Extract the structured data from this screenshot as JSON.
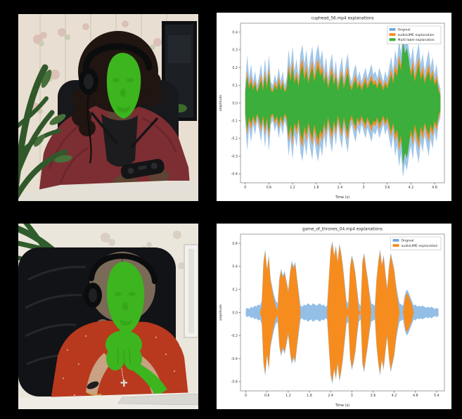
{
  "figure": {
    "background_color": "#000000",
    "photos": [
      {
        "name": "video-frame-top",
        "description": "person with dark curly hair wearing black headphones, bright green segmentation mask over face, maroon jacket, holding a game controller at a white table, floral wallpaper, plant left, dark poster right",
        "mask_color": "#3cb51e"
      },
      {
        "name": "video-frame-bottom",
        "description": "older woman with long braid wearing black headphones, bright green segmentation mask over face and clasped hands, red patterned blouse, black leather chair, white table with laptop edge",
        "mask_color": "#3cb51e"
      }
    ]
  },
  "palette": {
    "mask": "#3cb51e",
    "mask-dk": "#2f9a14",
    "p1-wall": "#e8dfd2",
    "p1-flower1": "#d9b9ae",
    "p1-flower2": "#c2c9ad",
    "p1-plant": "#31582b",
    "p1-plant2": "#47703b",
    "p1-poster": "#1c2024",
    "p1-poster-frame": "#0e1013",
    "p1-chair": "#17181b",
    "p1-hair": "#201510",
    "p1-jacket": "#7c2e33",
    "p1-jacket-dk": "#5d2026",
    "p1-shirt": "#1c1c1e",
    "p1-skin": "#5f4333",
    "p1-controller": "#141416",
    "p1-table": "#e4e0d7",
    "p2-wall": "#eae6dc",
    "p2-flower": "#d5cabd",
    "p2-plant": "#2f5d2b",
    "p2-chair": "#121317",
    "p2-chair-hi": "#2e3036",
    "p2-hair": "#7a6a57",
    "p2-blouse": "#b8391d",
    "p2-skin": "#c9a183",
    "p2-watch": "#1d1d1f",
    "p2-gold": "#c9a23c",
    "p2-table": "#efece6",
    "p2-laptop": "#d9d7d2",
    "p2-frame": "#f2f1ee",
    "headphones": "#0b0c0d"
  },
  "chart_data": [
    {
      "type": "area",
      "title": "cuphead_56.mp4 explanations",
      "xlabel": "Time (s)",
      "ylabel": "amplitude",
      "xlim": [
        -0.12,
        5.05
      ],
      "ylim": [
        -0.45,
        0.45
      ],
      "xticks": [
        0,
        0.6,
        1.2,
        1.8,
        2.4,
        3,
        3.6,
        4.2,
        4.8
      ],
      "xtick_labels": [
        "0",
        "0.6",
        "1.2",
        "1.8",
        "2.4",
        "3",
        "3.6",
        "4.2",
        "4.8"
      ],
      "yticks": [
        0.4,
        0.3,
        0.2,
        0.1,
        0.0,
        -0.1,
        -0.2,
        -0.3,
        -0.4
      ],
      "ytick_labels": [
        "0.4",
        "0.3",
        "0.2",
        "0.1",
        "0.0",
        "-0.1",
        "-0.2",
        "-0.3",
        "-0.4"
      ],
      "legend_position": "upper right",
      "grid": false,
      "t0": 0,
      "dt": 0.05,
      "series": [
        {
          "name": "Original",
          "color": "#6fa8dc",
          "opacity": 0.65,
          "envelope": [
            0.1,
            0.27,
            0.14,
            0.22,
            0.12,
            0.18,
            0.1,
            0.15,
            0.22,
            0.12,
            0.25,
            0.14,
            0.27,
            0.12,
            0.1,
            0.16,
            0.12,
            0.2,
            0.12,
            0.18,
            0.1,
            0.14,
            0.3,
            0.2,
            0.32,
            0.18,
            0.25,
            0.15,
            0.28,
            0.33,
            0.22,
            0.3,
            0.18,
            0.26,
            0.32,
            0.2,
            0.28,
            0.33,
            0.24,
            0.3,
            0.18,
            0.26,
            0.14,
            0.22,
            0.28,
            0.16,
            0.24,
            0.12,
            0.2,
            0.26,
            0.14,
            0.22,
            0.28,
            0.16,
            0.12,
            0.18,
            0.22,
            0.14,
            0.18,
            0.12,
            0.16,
            0.2,
            0.14,
            0.18,
            0.22,
            0.16,
            0.18,
            0.14,
            0.2,
            0.16,
            0.12,
            0.18,
            0.14,
            0.2,
            0.26,
            0.18,
            0.3,
            0.24,
            0.36,
            0.28,
            0.42,
            0.34,
            0.38,
            0.3,
            0.24,
            0.32,
            0.2,
            0.28,
            0.34,
            0.22,
            0.28,
            0.18,
            0.24,
            0.3,
            0.2,
            0.26,
            0.16,
            0.22,
            0.12,
            0.08
          ]
        },
        {
          "name": "audioLIME explanation",
          "color": "#f68c1e",
          "opacity": 0.95,
          "envelope": [
            0.07,
            0.18,
            0.1,
            0.15,
            0.09,
            0.13,
            0.07,
            0.11,
            0.16,
            0.09,
            0.18,
            0.1,
            0.2,
            0.09,
            0.07,
            0.12,
            0.09,
            0.15,
            0.09,
            0.13,
            0.07,
            0.1,
            0.22,
            0.15,
            0.24,
            0.13,
            0.18,
            0.11,
            0.21,
            0.25,
            0.16,
            0.22,
            0.13,
            0.19,
            0.24,
            0.15,
            0.21,
            0.25,
            0.18,
            0.22,
            0.13,
            0.19,
            0.1,
            0.16,
            0.21,
            0.12,
            0.18,
            0.09,
            0.15,
            0.19,
            0.1,
            0.16,
            0.21,
            0.12,
            0.09,
            0.13,
            0.16,
            0.1,
            0.13,
            0.09,
            0.12,
            0.15,
            0.1,
            0.13,
            0.16,
            0.12,
            0.13,
            0.1,
            0.15,
            0.12,
            0.09,
            0.13,
            0.1,
            0.15,
            0.19,
            0.13,
            0.22,
            0.18,
            0.27,
            0.21,
            0.32,
            0.26,
            0.29,
            0.22,
            0.18,
            0.24,
            0.15,
            0.21,
            0.26,
            0.16,
            0.21,
            0.13,
            0.18,
            0.22,
            0.15,
            0.19,
            0.12,
            0.16,
            0.09,
            0.05
          ]
        },
        {
          "name": "Multi-label explanation",
          "color": "#3cae3c",
          "opacity": 1,
          "envelope": [
            0.06,
            0.15,
            0.08,
            0.12,
            0.07,
            0.11,
            0.06,
            0.09,
            0.13,
            0.07,
            0.15,
            0.08,
            0.17,
            0.07,
            0.06,
            0.1,
            0.07,
            0.12,
            0.07,
            0.11,
            0.06,
            0.08,
            0.19,
            0.12,
            0.2,
            0.11,
            0.15,
            0.09,
            0.17,
            0.21,
            0.13,
            0.18,
            0.11,
            0.16,
            0.2,
            0.12,
            0.17,
            0.21,
            0.15,
            0.18,
            0.11,
            0.16,
            0.08,
            0.13,
            0.17,
            0.1,
            0.15,
            0.07,
            0.12,
            0.16,
            0.08,
            0.13,
            0.17,
            0.1,
            0.07,
            0.11,
            0.13,
            0.08,
            0.11,
            0.07,
            0.1,
            0.12,
            0.08,
            0.11,
            0.13,
            0.1,
            0.11,
            0.08,
            0.12,
            0.1,
            0.07,
            0.11,
            0.08,
            0.12,
            0.16,
            0.11,
            0.18,
            0.15,
            0.23,
            0.18,
            0.35,
            0.28,
            0.31,
            0.24,
            0.15,
            0.2,
            0.12,
            0.17,
            0.22,
            0.13,
            0.17,
            0.11,
            0.15,
            0.18,
            0.12,
            0.16,
            0.1,
            0.13,
            0.07,
            0.04
          ]
        }
      ]
    },
    {
      "type": "area",
      "title": "game_of_thrones_04.mp4 explanations",
      "xlabel": "Time (s)",
      "ylabel": "amplitude",
      "xlim": [
        -0.15,
        5.62
      ],
      "ylim": [
        -0.68,
        0.68
      ],
      "xticks": [
        0,
        0.6,
        1.2,
        1.8,
        2.4,
        3,
        3.6,
        4.2,
        4.8,
        5.4
      ],
      "xtick_labels": [
        "0",
        "0.6",
        "1.2",
        "1.8",
        "2.4",
        "3",
        "3.6",
        "4.2",
        "4.8",
        "5.4"
      ],
      "yticks": [
        0.6,
        0.4,
        0.2,
        0.0,
        -0.2,
        -0.4,
        -0.6
      ],
      "ytick_labels": [
        "0.6",
        "0.4",
        "0.2",
        "0.0",
        "-0.2",
        "-0.4",
        "-0.6"
      ],
      "legend_position": "upper right",
      "grid": false,
      "t0": 0,
      "dt": 0.05,
      "series": [
        {
          "name": "Original",
          "color": "#6fa8dc",
          "opacity": 0.75,
          "envelope": [
            0.03,
            0.04,
            0.03,
            0.05,
            0.04,
            0.06,
            0.05,
            0.07,
            0.06,
            0.1,
            0.45,
            0.55,
            0.38,
            0.5,
            0.3,
            0.22,
            0.15,
            0.1,
            0.08,
            0.3,
            0.38,
            0.32,
            0.36,
            0.28,
            0.2,
            0.35,
            0.45,
            0.4,
            0.44,
            0.3,
            0.18,
            0.06,
            0.05,
            0.07,
            0.06,
            0.08,
            0.07,
            0.06,
            0.08,
            0.07,
            0.06,
            0.07,
            0.08,
            0.06,
            0.07,
            0.05,
            0.06,
            0.3,
            0.55,
            0.62,
            0.5,
            0.58,
            0.45,
            0.6,
            0.52,
            0.4,
            0.25,
            0.1,
            0.08,
            0.4,
            0.5,
            0.44,
            0.35,
            0.2,
            0.08,
            0.06,
            0.45,
            0.52,
            0.4,
            0.3,
            0.18,
            0.08,
            0.07,
            0.06,
            0.3,
            0.45,
            0.55,
            0.42,
            0.5,
            0.35,
            0.22,
            0.4,
            0.52,
            0.45,
            0.38,
            0.25,
            0.15,
            0.08,
            0.07,
            0.06,
            0.15,
            0.2,
            0.18,
            0.14,
            0.1,
            0.06,
            0.07,
            0.05,
            0.06,
            0.05,
            0.06,
            0.05,
            0.04,
            0.05,
            0.04,
            0.05,
            0.04,
            0.03,
            0.04,
            0.03
          ]
        },
        {
          "name": "audioLIME explanation",
          "color": "#f68c1e",
          "opacity": 1,
          "envelope": [
            0.0,
            0.0,
            0.0,
            0.0,
            0.0,
            0.0,
            0.0,
            0.0,
            0.0,
            0.05,
            0.42,
            0.53,
            0.36,
            0.48,
            0.28,
            0.19,
            0.11,
            0.05,
            0.02,
            0.28,
            0.36,
            0.3,
            0.34,
            0.26,
            0.17,
            0.33,
            0.43,
            0.38,
            0.42,
            0.28,
            0.14,
            0.0,
            0.0,
            0.0,
            0.0,
            0.0,
            0.0,
            0.0,
            0.0,
            0.0,
            0.0,
            0.0,
            0.0,
            0.0,
            0.0,
            0.0,
            0.0,
            0.28,
            0.53,
            0.6,
            0.48,
            0.56,
            0.43,
            0.58,
            0.5,
            0.38,
            0.22,
            0.05,
            0.02,
            0.38,
            0.48,
            0.42,
            0.33,
            0.17,
            0.02,
            0.0,
            0.43,
            0.5,
            0.38,
            0.28,
            0.15,
            0.0,
            0.0,
            0.0,
            0.28,
            0.43,
            0.53,
            0.4,
            0.48,
            0.33,
            0.19,
            0.38,
            0.5,
            0.43,
            0.36,
            0.22,
            0.11,
            0.0,
            0.0,
            0.0,
            0.12,
            0.17,
            0.15,
            0.11,
            0.07,
            0.0,
            0.0,
            0.0,
            0.0,
            0.0,
            0.0,
            0.0,
            0.0,
            0.0,
            0.0,
            0.0,
            0.0,
            0.0,
            0.0,
            0.0
          ]
        }
      ]
    }
  ]
}
